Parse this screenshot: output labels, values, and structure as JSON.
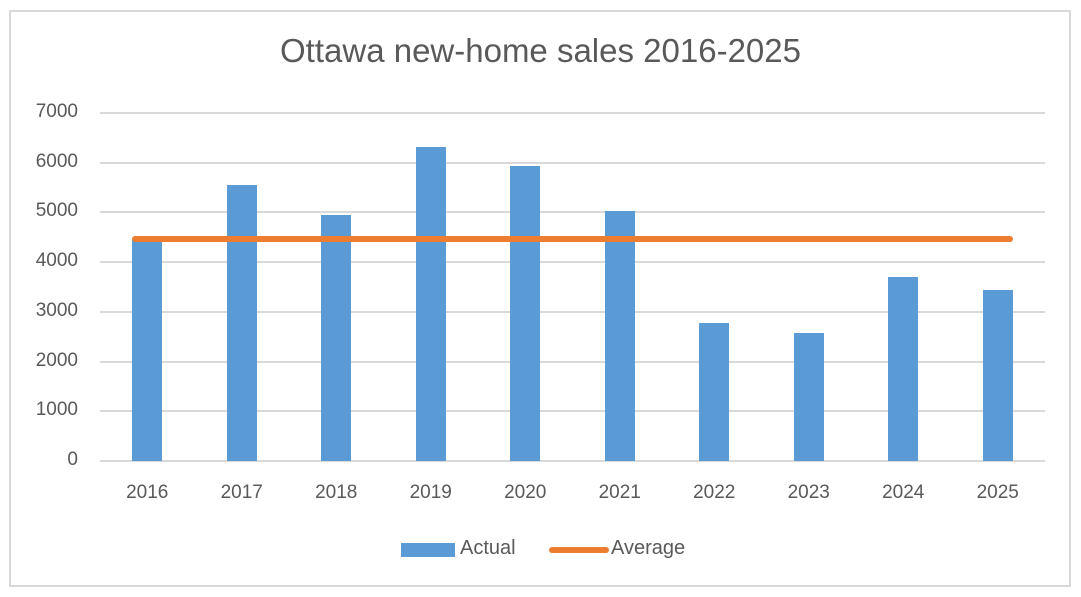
{
  "chart_data": {
    "type": "bar",
    "title": "Ottawa new-home sales 2016-2025",
    "xlabel": "",
    "ylabel": "",
    "ylim": [
      0,
      7000
    ],
    "yticks": [
      0,
      1000,
      2000,
      3000,
      4000,
      5000,
      6000,
      7000
    ],
    "grid": true,
    "legend_position": "bottom",
    "categories": [
      "2016",
      "2017",
      "2018",
      "2019",
      "2020",
      "2021",
      "2022",
      "2023",
      "2024",
      "2025"
    ],
    "series": [
      {
        "name": "Actual",
        "type": "bar",
        "color": "#5b9bd5",
        "values": [
          4450,
          5550,
          4950,
          6320,
          5930,
          5020,
          2780,
          2580,
          3710,
          3430
        ]
      },
      {
        "name": "Average",
        "type": "line",
        "color": "#ed7d31",
        "values": [
          4472,
          4472,
          4472,
          4472,
          4472,
          4472,
          4472,
          4472,
          4472,
          4472
        ]
      }
    ]
  },
  "legend": {
    "actual": "Actual",
    "average": "Average"
  }
}
